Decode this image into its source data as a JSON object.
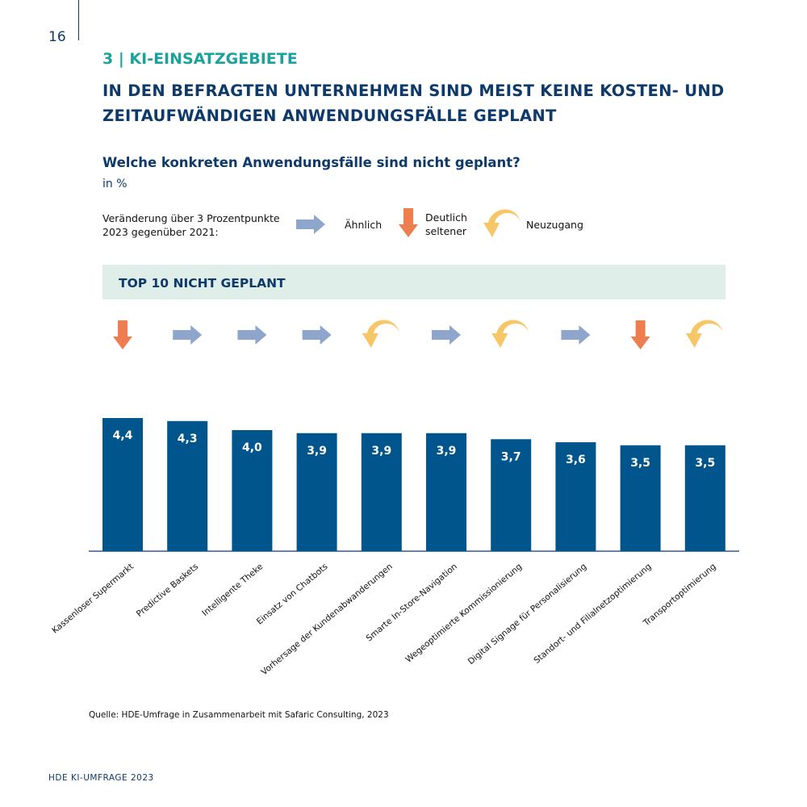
{
  "page_number": "16",
  "section": "3 | KI-EINSATZGEBIETE",
  "headline": "IN DEN BEFRAGTEN UNTERNEHMEN SIND MEIST KEINE KOSTEN- UND\nZEITAUFWÄNDIGEN ANWENDUNGSFÄLLE GEPLANT",
  "source": "Quelle: HDE-Umfrage in Zusammenarbeit mit Safaric Consulting, 2023",
  "footer": "HDE KI-UMFRAGE 2023",
  "chart_data": {
    "type": "bar",
    "title": "Welche konkreten Anwendungsfälle sind nicht geplant?",
    "unit": "in %",
    "panel_title": "TOP 10 NICHT GEPLANT",
    "legend": {
      "title": "Veränderung über 3 Prozentpunkte\n2023 gegenüber 2021:",
      "items": [
        {
          "label": "Ähnlich",
          "icon": "right"
        },
        {
          "label": "Deutlich\nseltener",
          "icon": "down"
        },
        {
          "label": "Neuzugang",
          "icon": "new"
        }
      ]
    },
    "categories": [
      "Kassenloser Supermarkt",
      "Predictive Baskets",
      "Intelligente Theke",
      "Einsatz von Chatbots",
      "Vorhersage der Kundenabwanderungen",
      "Smarte In-Store-Navigation",
      "Wegeoptimierte Kommissionierung",
      "Digital Signage für Personalisierung",
      "Standort- und Filialnetzoptimierung",
      "Transportoptimierung"
    ],
    "values": [
      4.4,
      4.3,
      4.0,
      3.9,
      3.9,
      3.9,
      3.7,
      3.6,
      3.5,
      3.5
    ],
    "value_labels": [
      "4,4",
      "4,3",
      "4,0",
      "3,9",
      "3,9",
      "3,9",
      "3,7",
      "3,6",
      "3,5",
      "3,5"
    ],
    "trends": [
      "down",
      "right",
      "right",
      "right",
      "new",
      "right",
      "new",
      "right",
      "down",
      "new"
    ],
    "color": "#00558c"
  }
}
